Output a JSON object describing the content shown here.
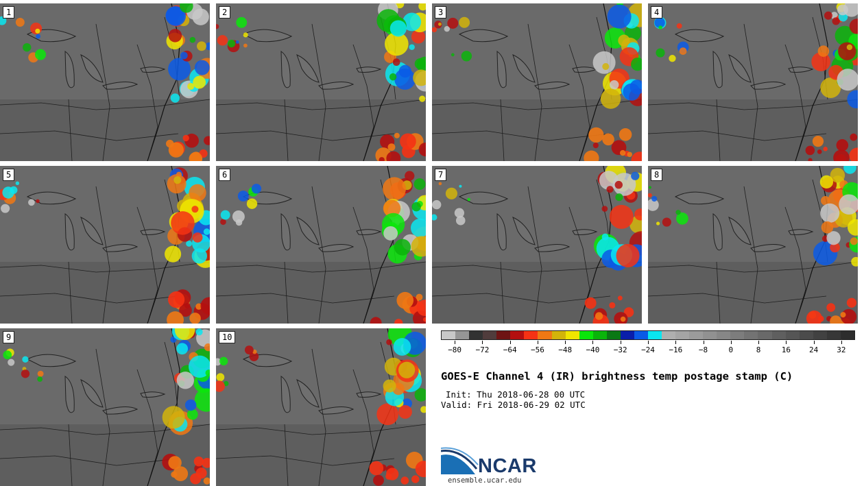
{
  "panels": [
    {
      "label": "1"
    },
    {
      "label": "2"
    },
    {
      "label": "3"
    },
    {
      "label": "4"
    },
    {
      "label": "5"
    },
    {
      "label": "6"
    },
    {
      "label": "7"
    },
    {
      "label": "8"
    },
    {
      "label": "9"
    },
    {
      "label": "10"
    }
  ],
  "colorbar": {
    "colors": [
      "#c8c8c8",
      "#969696",
      "#323232",
      "#503c3c",
      "#6e1414",
      "#b40f0f",
      "#f53214",
      "#f07814",
      "#d2b40a",
      "#f0e600",
      "#0ae60a",
      "#0ab40a",
      "#0a7814",
      "#0a1eaa",
      "#0a5ae6",
      "#0ae6f0",
      "#afafaf",
      "#a5a5a5",
      "#9b9b9b",
      "#919191",
      "#878787",
      "#7d7d7d",
      "#737373",
      "#696969",
      "#5f5f5f",
      "#555555",
      "#4b4b4b",
      "#414141",
      "#373737",
      "#2d2d2d"
    ],
    "tick_labels": [
      "−80",
      "−72",
      "−64",
      "−56",
      "−48",
      "−40",
      "−32",
      "−24",
      "−16",
      "−8",
      "0",
      "8",
      "16",
      "24",
      "32"
    ]
  },
  "title": "GOES-E Channel 4 (IR) brightness temp postage stamp (C)",
  "init": "Init: Thu 2018-06-28 00 UTC",
  "valid": "Valid: Fri 2018-06-29 02 UTC",
  "logo": {
    "text": "NCAR",
    "url": "ensemble.ucar.edu"
  }
}
